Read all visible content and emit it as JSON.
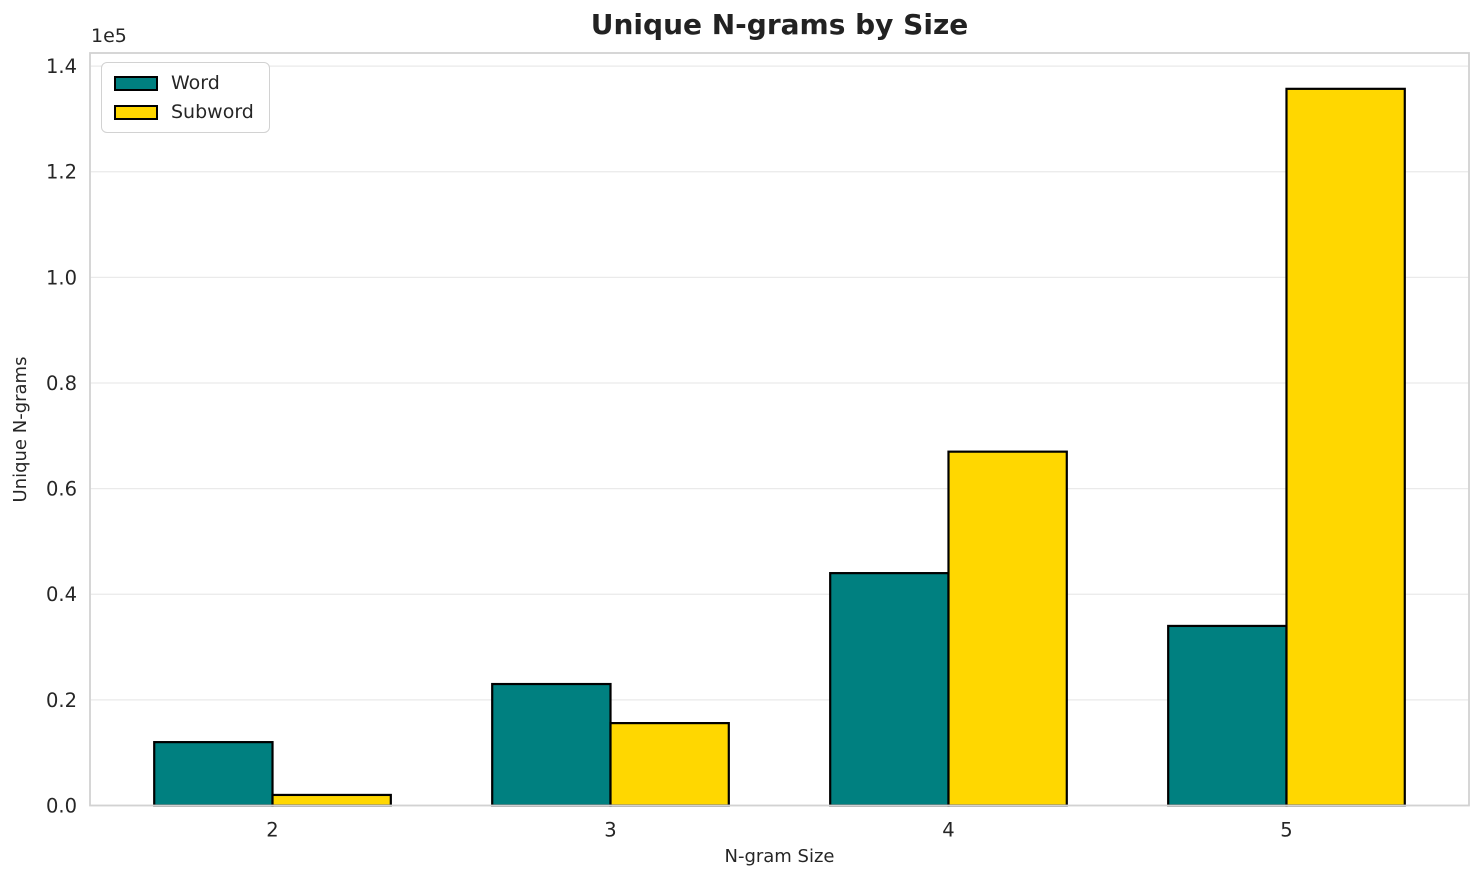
{
  "chart_data": {
    "type": "bar",
    "title": "Unique N-grams by Size",
    "xlabel": "N-gram Size",
    "ylabel": "Unique N-grams",
    "categories": [
      "2",
      "3",
      "4",
      "5"
    ],
    "series": [
      {
        "name": "Word",
        "color": "#008080",
        "values": [
          12000,
          23000,
          44000,
          34000
        ]
      },
      {
        "name": "Subword",
        "color": "#FFD700",
        "values": [
          2000,
          15600,
          67000,
          135700
        ]
      }
    ],
    "bar_width": 0.35,
    "bar_edge_color": "#000000",
    "xlim": [
      -0.54,
      3.54
    ],
    "ylim": [
      0,
      142485
    ],
    "yticks": [
      0,
      20000,
      40000,
      60000,
      80000,
      100000,
      120000,
      140000
    ],
    "ytick_labels": [
      "0.0",
      "0.2",
      "0.4",
      "0.6",
      "0.8",
      "1.0",
      "1.2",
      "1.4"
    ],
    "y_scale_offset_label": "1e5",
    "grid": true,
    "legend_position": "upper left",
    "colors": {
      "background": "#ffffff",
      "grid": "#eaeaea",
      "spine": "#d2d2d2",
      "text": "#262626"
    }
  }
}
